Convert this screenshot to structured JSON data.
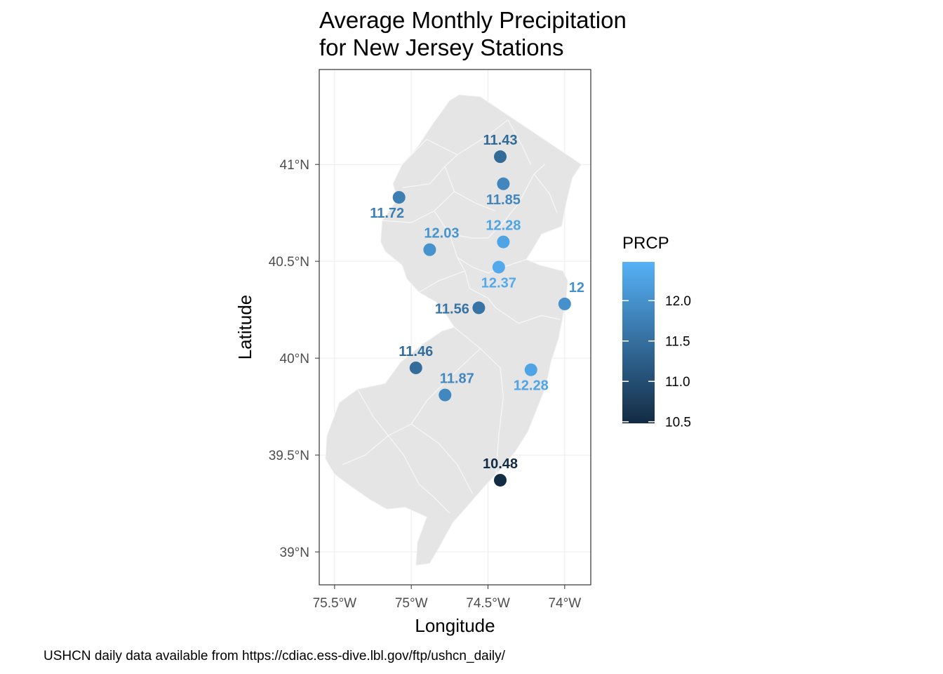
{
  "title_lines": [
    "Average Monthly Precipitation",
    "for New Jersey Stations"
  ],
  "caption": "USHCN daily data available from  https://cdiac.ess-dive.lbl.gov/ftp/ushcn_daily/",
  "colors": {
    "land": "#e5e5e5",
    "county_border": "#f7f7f7",
    "panel_border": "#333333",
    "grid": "#ebebeb",
    "scale_low": "#132b43",
    "scale_high": "#56b1f7"
  },
  "chart_data": {
    "type": "scatter",
    "xlabel": "Longitude",
    "ylabel": "Latitude",
    "xlim": [
      -75.6,
      -73.83
    ],
    "ylim": [
      38.83,
      41.49
    ],
    "x_ticks": [
      {
        "value": -75.5,
        "label": "75.5°W"
      },
      {
        "value": -75.0,
        "label": "75°W"
      },
      {
        "value": -74.5,
        "label": "74.5°W"
      },
      {
        "value": -74.0,
        "label": "74°W"
      }
    ],
    "y_ticks": [
      {
        "value": 39.0,
        "label": "39°N"
      },
      {
        "value": 39.5,
        "label": "39.5°N"
      },
      {
        "value": 40.0,
        "label": "40°N"
      },
      {
        "value": 40.5,
        "label": "40.5°N"
      },
      {
        "value": 41.0,
        "label": "41°N"
      }
    ],
    "grid": true,
    "legend": {
      "title": "PRCP",
      "placement": "right",
      "range": [
        10.48,
        12.48
      ],
      "ticks": [
        {
          "value": 10.5,
          "label": "10.5"
        },
        {
          "value": 11.0,
          "label": "11.0"
        },
        {
          "value": 11.5,
          "label": "11.5"
        },
        {
          "value": 12.0,
          "label": "12.0"
        }
      ]
    },
    "points": [
      {
        "lon": -74.42,
        "lat": 41.04,
        "prcp": 11.43,
        "label": "11.43",
        "label_pos": "above"
      },
      {
        "lon": -74.4,
        "lat": 40.9,
        "prcp": 11.85,
        "label": "11.85",
        "label_pos": "below"
      },
      {
        "lon": -75.08,
        "lat": 40.83,
        "prcp": 11.72,
        "label": "11.72",
        "label_pos": "below-left"
      },
      {
        "lon": -74.4,
        "lat": 40.6,
        "prcp": 12.28,
        "label": "12.28",
        "label_pos": "above"
      },
      {
        "lon": -74.88,
        "lat": 40.56,
        "prcp": 12.03,
        "label": "12.03",
        "label_pos": "above-right"
      },
      {
        "lon": -74.43,
        "lat": 40.47,
        "prcp": 12.37,
        "label": "12.37",
        "label_pos": "below"
      },
      {
        "lon": -74.56,
        "lat": 40.26,
        "prcp": 11.56,
        "label": "11.56",
        "label_pos": "left"
      },
      {
        "lon": -74.0,
        "lat": 40.28,
        "prcp": 12.0,
        "label": "12",
        "label_pos": "above-right"
      },
      {
        "lon": -74.97,
        "lat": 39.95,
        "prcp": 11.46,
        "label": "11.46",
        "label_pos": "above"
      },
      {
        "lon": -74.22,
        "lat": 39.94,
        "prcp": 12.28,
        "label": "12.28",
        "label_pos": "below"
      },
      {
        "lon": -74.78,
        "lat": 39.81,
        "prcp": 11.87,
        "label": "11.87",
        "label_pos": "above-right"
      },
      {
        "lon": -74.42,
        "lat": 39.37,
        "prcp": 10.48,
        "label": "10.48",
        "label_pos": "above"
      }
    ],
    "state_outline": [
      [
        -74.69,
        41.36
      ],
      [
        -74.55,
        41.35
      ],
      [
        -73.89,
        41.0
      ],
      [
        -73.95,
        40.93
      ],
      [
        -73.99,
        40.8
      ],
      [
        -74.02,
        40.68
      ],
      [
        -74.15,
        40.64
      ],
      [
        -74.21,
        40.56
      ],
      [
        -74.25,
        40.51
      ],
      [
        -74.16,
        40.48
      ],
      [
        -74.01,
        40.45
      ],
      [
        -73.98,
        40.4
      ],
      [
        -73.99,
        40.3
      ],
      [
        -74.04,
        40.1
      ],
      [
        -74.09,
        39.98
      ],
      [
        -74.12,
        39.86
      ],
      [
        -74.17,
        39.76
      ],
      [
        -74.24,
        39.62
      ],
      [
        -74.32,
        39.52
      ],
      [
        -74.4,
        39.44
      ],
      [
        -74.52,
        39.34
      ],
      [
        -74.63,
        39.24
      ],
      [
        -74.73,
        39.15
      ],
      [
        -74.82,
        39.02
      ],
      [
        -74.88,
        38.94
      ],
      [
        -74.97,
        38.93
      ],
      [
        -74.96,
        39.05
      ],
      [
        -74.9,
        39.18
      ],
      [
        -75.04,
        39.23
      ],
      [
        -75.16,
        39.22
      ],
      [
        -75.27,
        39.27
      ],
      [
        -75.38,
        39.33
      ],
      [
        -75.5,
        39.4
      ],
      [
        -75.56,
        39.48
      ],
      [
        -75.55,
        39.6
      ],
      [
        -75.47,
        39.77
      ],
      [
        -75.35,
        39.84
      ],
      [
        -75.17,
        39.87
      ],
      [
        -75.07,
        39.98
      ],
      [
        -74.93,
        40.07
      ],
      [
        -74.8,
        40.14
      ],
      [
        -74.72,
        40.16
      ],
      [
        -74.77,
        40.22
      ],
      [
        -74.84,
        40.29
      ],
      [
        -74.95,
        40.34
      ],
      [
        -75.03,
        40.41
      ],
      [
        -75.06,
        40.48
      ],
      [
        -75.17,
        40.55
      ],
      [
        -75.2,
        40.6
      ],
      [
        -75.19,
        40.71
      ],
      [
        -75.09,
        40.82
      ],
      [
        -75.12,
        40.9
      ],
      [
        -75.06,
        41.0
      ],
      [
        -74.96,
        41.09
      ],
      [
        -74.86,
        41.21
      ],
      [
        -74.75,
        41.33
      ],
      [
        -74.69,
        41.36
      ]
    ],
    "county_borders": [
      [
        [
          -75.06,
          41.0
        ],
        [
          -74.9,
          41.13
        ],
        [
          -74.7,
          41.05
        ],
        [
          -74.5,
          41.15
        ],
        [
          -74.37,
          41.23
        ]
      ],
      [
        [
          -74.37,
          41.23
        ],
        [
          -74.28,
          41.1
        ],
        [
          -74.22,
          41.0
        ]
      ],
      [
        [
          -75.06,
          40.88
        ],
        [
          -74.88,
          40.9
        ],
        [
          -74.78,
          40.99
        ],
        [
          -74.7,
          41.05
        ]
      ],
      [
        [
          -74.78,
          40.99
        ],
        [
          -74.72,
          40.86
        ],
        [
          -74.58,
          40.8
        ],
        [
          -74.45,
          40.76
        ]
      ],
      [
        [
          -74.5,
          40.62
        ],
        [
          -74.4,
          40.7
        ],
        [
          -74.3,
          40.8
        ],
        [
          -74.2,
          40.95
        ],
        [
          -74.13,
          41.0
        ]
      ],
      [
        [
          -74.2,
          40.95
        ],
        [
          -74.1,
          40.85
        ],
        [
          -74.05,
          40.75
        ]
      ],
      [
        [
          -75.19,
          40.71
        ],
        [
          -75.0,
          40.7
        ],
        [
          -74.85,
          40.76
        ],
        [
          -74.72,
          40.86
        ]
      ],
      [
        [
          -74.85,
          40.76
        ],
        [
          -74.75,
          40.64
        ],
        [
          -74.7,
          40.52
        ],
        [
          -74.65,
          40.45
        ]
      ],
      [
        [
          -74.75,
          40.64
        ],
        [
          -74.6,
          40.62
        ],
        [
          -74.5,
          40.62
        ]
      ],
      [
        [
          -74.7,
          40.52
        ],
        [
          -74.6,
          40.47
        ],
        [
          -74.5,
          40.44
        ],
        [
          -74.4,
          40.47
        ],
        [
          -74.25,
          40.51
        ]
      ],
      [
        [
          -74.95,
          40.34
        ],
        [
          -74.82,
          40.4
        ],
        [
          -74.65,
          40.45
        ]
      ],
      [
        [
          -74.65,
          40.45
        ],
        [
          -74.62,
          40.36
        ],
        [
          -74.5,
          40.31
        ],
        [
          -74.45,
          40.26
        ],
        [
          -74.3,
          40.18
        ],
        [
          -74.15,
          40.22
        ],
        [
          -74.03,
          40.2
        ]
      ],
      [
        [
          -74.72,
          40.16
        ],
        [
          -74.55,
          40.05
        ],
        [
          -74.42,
          39.95
        ],
        [
          -74.4,
          39.8
        ],
        [
          -74.43,
          39.6
        ],
        [
          -74.45,
          39.38
        ]
      ],
      [
        [
          -74.55,
          40.05
        ],
        [
          -74.75,
          39.9
        ],
        [
          -74.9,
          39.78
        ],
        [
          -75.0,
          39.66
        ],
        [
          -75.15,
          39.6
        ]
      ],
      [
        [
          -75.35,
          39.84
        ],
        [
          -75.25,
          39.7
        ],
        [
          -75.15,
          39.6
        ],
        [
          -75.05,
          39.5
        ],
        [
          -74.95,
          39.35
        ]
      ],
      [
        [
          -75.0,
          39.66
        ],
        [
          -74.82,
          39.56
        ],
        [
          -74.7,
          39.45
        ],
        [
          -74.6,
          39.3
        ]
      ],
      [
        [
          -75.15,
          39.6
        ],
        [
          -75.3,
          39.5
        ],
        [
          -75.45,
          39.45
        ]
      ],
      [
        [
          -74.95,
          39.35
        ],
        [
          -74.85,
          39.28
        ],
        [
          -74.75,
          39.2
        ]
      ]
    ]
  }
}
